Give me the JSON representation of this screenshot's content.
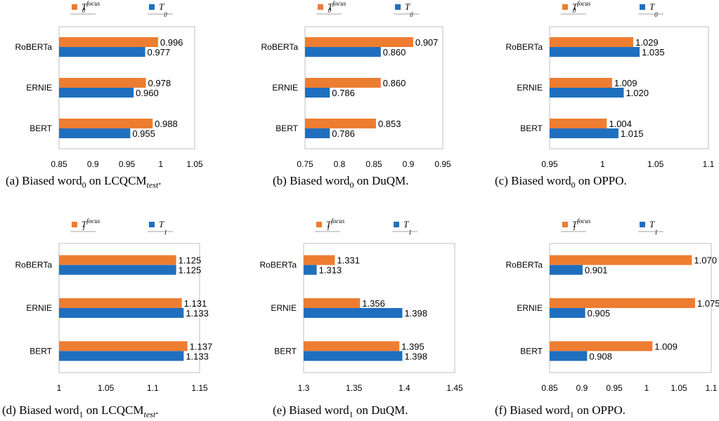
{
  "figure": {
    "colors": {
      "focus": "#ED7D31",
      "base": "#1F6FBF"
    }
  },
  "chart_data": [
    {
      "type": "bar",
      "orientation": "horizontal",
      "caption": {
        "pre": "(a)  Biased word",
        "sub": "0",
        "post": " on LCQCM",
        "tsub": "test",
        "end": "."
      },
      "legend": [
        {
          "sym": "T",
          "sub": "0",
          "sup": "focus"
        },
        {
          "sym": "T",
          "sub": "0",
          "sup": ""
        }
      ],
      "categories": [
        "RoBERTa",
        "ERNIE",
        "BERT"
      ],
      "series": [
        {
          "key": "focus",
          "values": [
            0.996,
            0.978,
            0.988
          ],
          "labels": [
            "0.996",
            "0.978",
            "0.988"
          ]
        },
        {
          "key": "base",
          "values": [
            0.977,
            0.96,
            0.955
          ],
          "labels": [
            "0.977",
            "0.960",
            "0.955"
          ]
        }
      ],
      "xlim": [
        0.85,
        1.05
      ],
      "xticks": [
        0.85,
        0.9,
        0.95,
        1,
        1.05
      ],
      "xtick_labels": [
        "0.85",
        "0.9",
        "0.95",
        "1",
        "1.05"
      ]
    },
    {
      "type": "bar",
      "orientation": "horizontal",
      "caption": {
        "pre": "(b)  Biased word",
        "sub": "0",
        "post": " on DuQM.",
        "tsub": "",
        "end": ""
      },
      "legend": [
        {
          "sym": "T",
          "sub": "0",
          "sup": "focus"
        },
        {
          "sym": "T",
          "sub": "0",
          "sup": ""
        }
      ],
      "categories": [
        "RoBERTa",
        "ERNIE",
        "BERT"
      ],
      "series": [
        {
          "key": "focus",
          "values": [
            0.907,
            0.86,
            0.853
          ],
          "labels": [
            "0.907",
            "0.860",
            "0.853"
          ]
        },
        {
          "key": "base",
          "values": [
            0.86,
            0.786,
            0.786
          ],
          "labels": [
            "0.860",
            "0.786",
            "0.786"
          ]
        }
      ],
      "xlim": [
        0.75,
        0.95
      ],
      "xticks": [
        0.75,
        0.8,
        0.85,
        0.9,
        0.95
      ],
      "xtick_labels": [
        "0.75",
        "0.8",
        "0.85",
        "0.9",
        "0.95"
      ]
    },
    {
      "type": "bar",
      "orientation": "horizontal",
      "caption": {
        "pre": "(c)  Biased word",
        "sub": "0",
        "post": " on OPPO.",
        "tsub": "",
        "end": ""
      },
      "legend": [
        {
          "sym": "T",
          "sub": "0",
          "sup": "focus"
        },
        {
          "sym": "T",
          "sub": "0",
          "sup": ""
        }
      ],
      "categories": [
        "RoBERTa",
        "ERNIE",
        "BERT"
      ],
      "series": [
        {
          "key": "focus",
          "values": [
            1.029,
            1.009,
            1.004
          ],
          "labels": [
            "1.029",
            "1.009",
            "1.004"
          ]
        },
        {
          "key": "base",
          "values": [
            1.035,
            1.02,
            1.015
          ],
          "labels": [
            "1.035",
            "1.020",
            "1.015"
          ]
        }
      ],
      "xlim": [
        0.95,
        1.1
      ],
      "xticks": [
        0.95,
        1,
        1.05,
        1.1
      ],
      "xtick_labels": [
        "0.95",
        "1",
        "1.05",
        "1.1"
      ]
    },
    {
      "type": "bar",
      "orientation": "horizontal",
      "caption": {
        "pre": "(d)  Biased word",
        "sub": "1",
        "post": " on LCQCM",
        "tsub": "test",
        "end": "."
      },
      "legend": [
        {
          "sym": "T",
          "sub": "1",
          "sup": "focus"
        },
        {
          "sym": "T",
          "sub": "1",
          "sup": ""
        }
      ],
      "categories": [
        "RoBERTa",
        "ERNIE",
        "BERT"
      ],
      "series": [
        {
          "key": "focus",
          "values": [
            1.125,
            1.131,
            1.137
          ],
          "labels": [
            "1.125",
            "1.131",
            "1.137"
          ]
        },
        {
          "key": "base",
          "values": [
            1.125,
            1.133,
            1.133
          ],
          "labels": [
            "1.125",
            "1.133",
            "1.133"
          ]
        }
      ],
      "xlim": [
        1,
        1.15
      ],
      "xticks": [
        1,
        1.05,
        1.1,
        1.15
      ],
      "xtick_labels": [
        "1",
        "1.05",
        "1.1",
        "1.15"
      ]
    },
    {
      "type": "bar",
      "orientation": "horizontal",
      "caption": {
        "pre": "(e)  Biased word",
        "sub": "1",
        "post": " on DuQM.",
        "tsub": "",
        "end": ""
      },
      "legend": [
        {
          "sym": "T",
          "sub": "1",
          "sup": "focus"
        },
        {
          "sym": "T",
          "sub": "1",
          "sup": ""
        }
      ],
      "categories": [
        "RoBERTa",
        "ERNIE",
        "BERT"
      ],
      "series": [
        {
          "key": "focus",
          "values": [
            1.331,
            1.356,
            1.395
          ],
          "labels": [
            "1.331",
            "1.356",
            "1.395"
          ]
        },
        {
          "key": "base",
          "values": [
            1.313,
            1.398,
            1.398
          ],
          "labels": [
            "1.313",
            "1.398",
            "1.398"
          ]
        }
      ],
      "xlim": [
        1.3,
        1.45
      ],
      "xticks": [
        1.3,
        1.35,
        1.4,
        1.45
      ],
      "xtick_labels": [
        "1.3",
        "1.35",
        "1.4",
        "1.45"
      ]
    },
    {
      "type": "bar",
      "orientation": "horizontal",
      "caption": {
        "pre": "(f)  Biased word",
        "sub": "1",
        "post": " on OPPO.",
        "tsub": "",
        "end": ""
      },
      "legend": [
        {
          "sym": "T",
          "sub": "1",
          "sup": "focus"
        },
        {
          "sym": "T",
          "sub": "1",
          "sup": ""
        }
      ],
      "categories": [
        "RoBERTa",
        "ERNIE",
        "BERT"
      ],
      "series": [
        {
          "key": "focus",
          "values": [
            1.07,
            1.075,
            1.009
          ],
          "labels": [
            "1.070",
            "1.075",
            "1.009"
          ]
        },
        {
          "key": "base",
          "values": [
            0.901,
            0.905,
            0.908
          ],
          "labels": [
            "0.901",
            "0.905",
            "0.908"
          ]
        }
      ],
      "xlim": [
        0.85,
        1.1
      ],
      "xticks": [
        0.85,
        0.9,
        0.95,
        1,
        1.05,
        1.1
      ],
      "xtick_labels": [
        "0.85",
        "0.9",
        "0.95",
        "1",
        "1.05",
        "1.1"
      ]
    }
  ]
}
